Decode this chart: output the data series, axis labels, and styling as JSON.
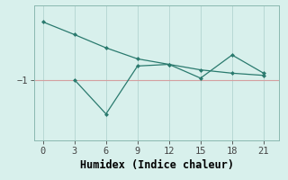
{
  "xlabel": "Humidex (Indice chaleur)",
  "x": [
    0,
    3,
    6,
    9,
    12,
    15,
    18,
    21
  ],
  "line1": [
    0.05,
    -0.18,
    -0.42,
    -0.62,
    -0.72,
    -0.82,
    -0.88,
    -0.92
  ],
  "line2": [
    null,
    -1.0,
    -1.62,
    -0.75,
    -0.72,
    -0.97,
    -0.55,
    -0.88
  ],
  "line_color": "#2a7a6e",
  "bg_color": "#d8f0ec",
  "grid_color": "#b8d8d4",
  "ref_line_color": "#d4a0a0",
  "yticks": [
    -1
  ],
  "ylim": [
    -2.1,
    0.35
  ],
  "xlim": [
    -0.8,
    22.5
  ],
  "xticks": [
    0,
    3,
    6,
    9,
    12,
    15,
    18,
    21
  ],
  "tick_fontsize": 7.5,
  "xlabel_fontsize": 8.5
}
